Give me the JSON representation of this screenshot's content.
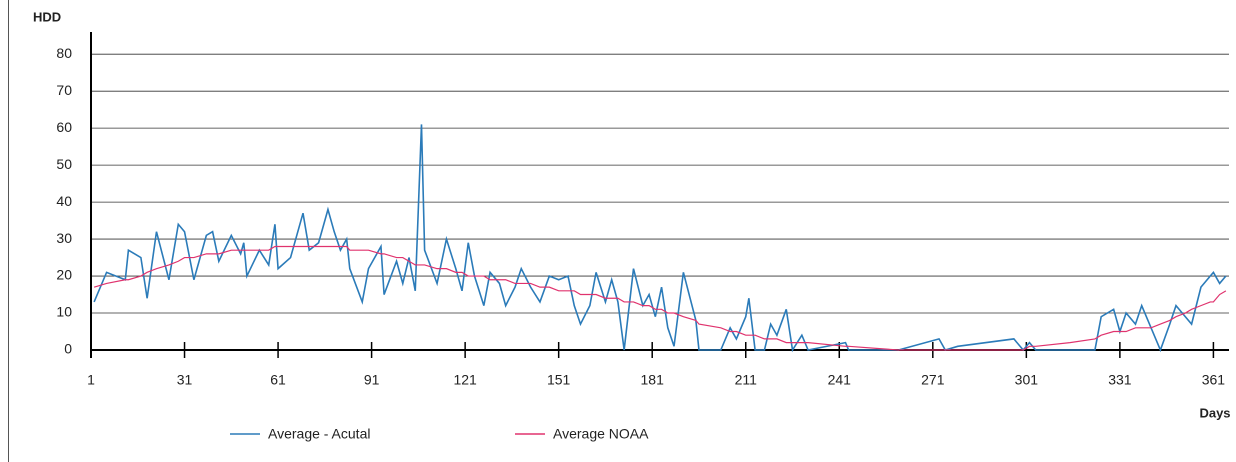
{
  "chart_data": {
    "type": "line",
    "y_label": "HDD",
    "x_label": "Days",
    "x": [
      2,
      6,
      12,
      13,
      17,
      19,
      22,
      26,
      29,
      31,
      34,
      38,
      40,
      42,
      46,
      49,
      50,
      51,
      55,
      58,
      60,
      61,
      65,
      69,
      71,
      74,
      77,
      79,
      81,
      83,
      84,
      88,
      90,
      94,
      95,
      99,
      101,
      103,
      105,
      107,
      108,
      112,
      115,
      118,
      120,
      122,
      124,
      127,
      129,
      132,
      134,
      137,
      139,
      142,
      145,
      148,
      151,
      154,
      156,
      158,
      161,
      163,
      166,
      168,
      170,
      172,
      175,
      178,
      180,
      182,
      184,
      186,
      188,
      191,
      195,
      196,
      203,
      206,
      208,
      211,
      212,
      214,
      217,
      219,
      221,
      224,
      226,
      229,
      231,
      243,
      244,
      260,
      273,
      275,
      279,
      297,
      300,
      302,
      304,
      315,
      323,
      325,
      329,
      331,
      333,
      336,
      338,
      341,
      344,
      347,
      349,
      352,
      354,
      357,
      360,
      361,
      363,
      365
    ],
    "series": [
      {
        "name": "Average - Acutal",
        "color": "#2b7bb9",
        "values": [
          13,
          21,
          19,
          27,
          25,
          14,
          32,
          19,
          34,
          32,
          19,
          31,
          32,
          24,
          31,
          26,
          29,
          20,
          27,
          23,
          34,
          22,
          25,
          37,
          27,
          29,
          38,
          32,
          27,
          30,
          22,
          13,
          22,
          28,
          15,
          24,
          18,
          25,
          16,
          61,
          27,
          18,
          30,
          22,
          16,
          29,
          20,
          12,
          21,
          18,
          12,
          17,
          22,
          17,
          13,
          20,
          19,
          20,
          12,
          7,
          12,
          21,
          13,
          19,
          13,
          0,
          22,
          12,
          15,
          9,
          17,
          6,
          1,
          21,
          8,
          0,
          0,
          6,
          3,
          9,
          14,
          0,
          0,
          7,
          4,
          11,
          0,
          4,
          0,
          2,
          0,
          0,
          3,
          0,
          1,
          3,
          0,
          2,
          0,
          0,
          0,
          9,
          11,
          5,
          10,
          7,
          12,
          6,
          0,
          7,
          12,
          9,
          7,
          17,
          20,
          21,
          18,
          20
        ]
      },
      {
        "name": "Average NOAA",
        "color": "#e0336e",
        "values": [
          17,
          18,
          19,
          19,
          20,
          21,
          22,
          23,
          24,
          25,
          25,
          26,
          26,
          26,
          27,
          27,
          27,
          27,
          27,
          27,
          28,
          28,
          28,
          28,
          28,
          28,
          28,
          28,
          28,
          28,
          27,
          27,
          27,
          26,
          26,
          25,
          25,
          24,
          23,
          23,
          23,
          22,
          22,
          21,
          21,
          20,
          20,
          20,
          19,
          19,
          19,
          18,
          18,
          18,
          17,
          17,
          16,
          16,
          16,
          15,
          15,
          15,
          14,
          14,
          14,
          13,
          13,
          12,
          12,
          11,
          11,
          10,
          10,
          9,
          8,
          7,
          6,
          5,
          5,
          4,
          4,
          4,
          3,
          3,
          3,
          2,
          2,
          2,
          2,
          1,
          1,
          0,
          0,
          0,
          0,
          0,
          0,
          1,
          1,
          2,
          3,
          4,
          5,
          5,
          5,
          6,
          6,
          6,
          7,
          8,
          9,
          10,
          11,
          12,
          13,
          13,
          15,
          16
        ]
      }
    ],
    "xlim": [
      1,
      366
    ],
    "xticks": [
      1,
      31,
      61,
      91,
      121,
      151,
      181,
      211,
      241,
      271,
      301,
      331,
      361
    ],
    "ylim": [
      0,
      86
    ],
    "yticks": [
      0,
      10,
      20,
      30,
      40,
      50,
      60,
      70,
      80
    ],
    "grid": true
  }
}
